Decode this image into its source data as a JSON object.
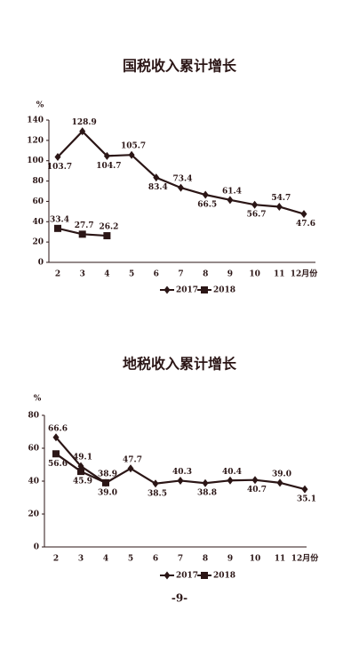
{
  "chart_data": [
    {
      "type": "line",
      "title": "国税收入累计增长",
      "y_label": "%",
      "categories": [
        "2",
        "3",
        "4",
        "5",
        "6",
        "7",
        "8",
        "9",
        "10",
        "11",
        "12月份"
      ],
      "ylim": [
        0,
        140
      ],
      "yticks": [
        0,
        20,
        40,
        60,
        80,
        100,
        120,
        140
      ],
      "series": [
        {
          "name": "2017",
          "color": "#2b1616",
          "marker": "diamond",
          "values": [
            103.7,
            128.9,
            104.7,
            105.7,
            83.4,
            73.4,
            66.5,
            61.4,
            56.7,
            54.7,
            47.6
          ]
        },
        {
          "name": "2018",
          "color": "#2b1616",
          "marker": "square",
          "values": [
            33.4,
            27.7,
            26.2,
            null,
            null,
            null,
            null,
            null,
            null,
            null,
            null
          ]
        }
      ]
    },
    {
      "type": "line",
      "title": "地税收入累计增长",
      "y_label": "%",
      "categories": [
        "2",
        "3",
        "4",
        "5",
        "6",
        "7",
        "8",
        "9",
        "10",
        "11",
        "12月份"
      ],
      "ylim": [
        0,
        80
      ],
      "yticks": [
        0,
        20,
        40,
        60,
        80
      ],
      "series": [
        {
          "name": "2017",
          "color": "#2b1616",
          "marker": "diamond",
          "values": [
            66.6,
            49.1,
            38.9,
            47.7,
            38.5,
            40.3,
            38.8,
            40.4,
            40.7,
            39.0,
            35.1
          ],
          "value_labels": [
            "66.6",
            "49.1",
            "38.9",
            "47.7",
            "38.5",
            "40.3",
            "38.8",
            "40.4",
            "40.7",
            "39.0",
            "35.1"
          ]
        },
        {
          "name": "2018",
          "color": "#2b1616",
          "marker": "square",
          "values": [
            56.6,
            45.9,
            39.0,
            null,
            null,
            null,
            null,
            null,
            null,
            null,
            null
          ],
          "value_labels": [
            "56.6",
            "45.9",
            "39.0",
            null,
            null,
            null,
            null,
            null,
            null,
            null,
            null
          ]
        }
      ]
    }
  ],
  "page_number": "-9-"
}
